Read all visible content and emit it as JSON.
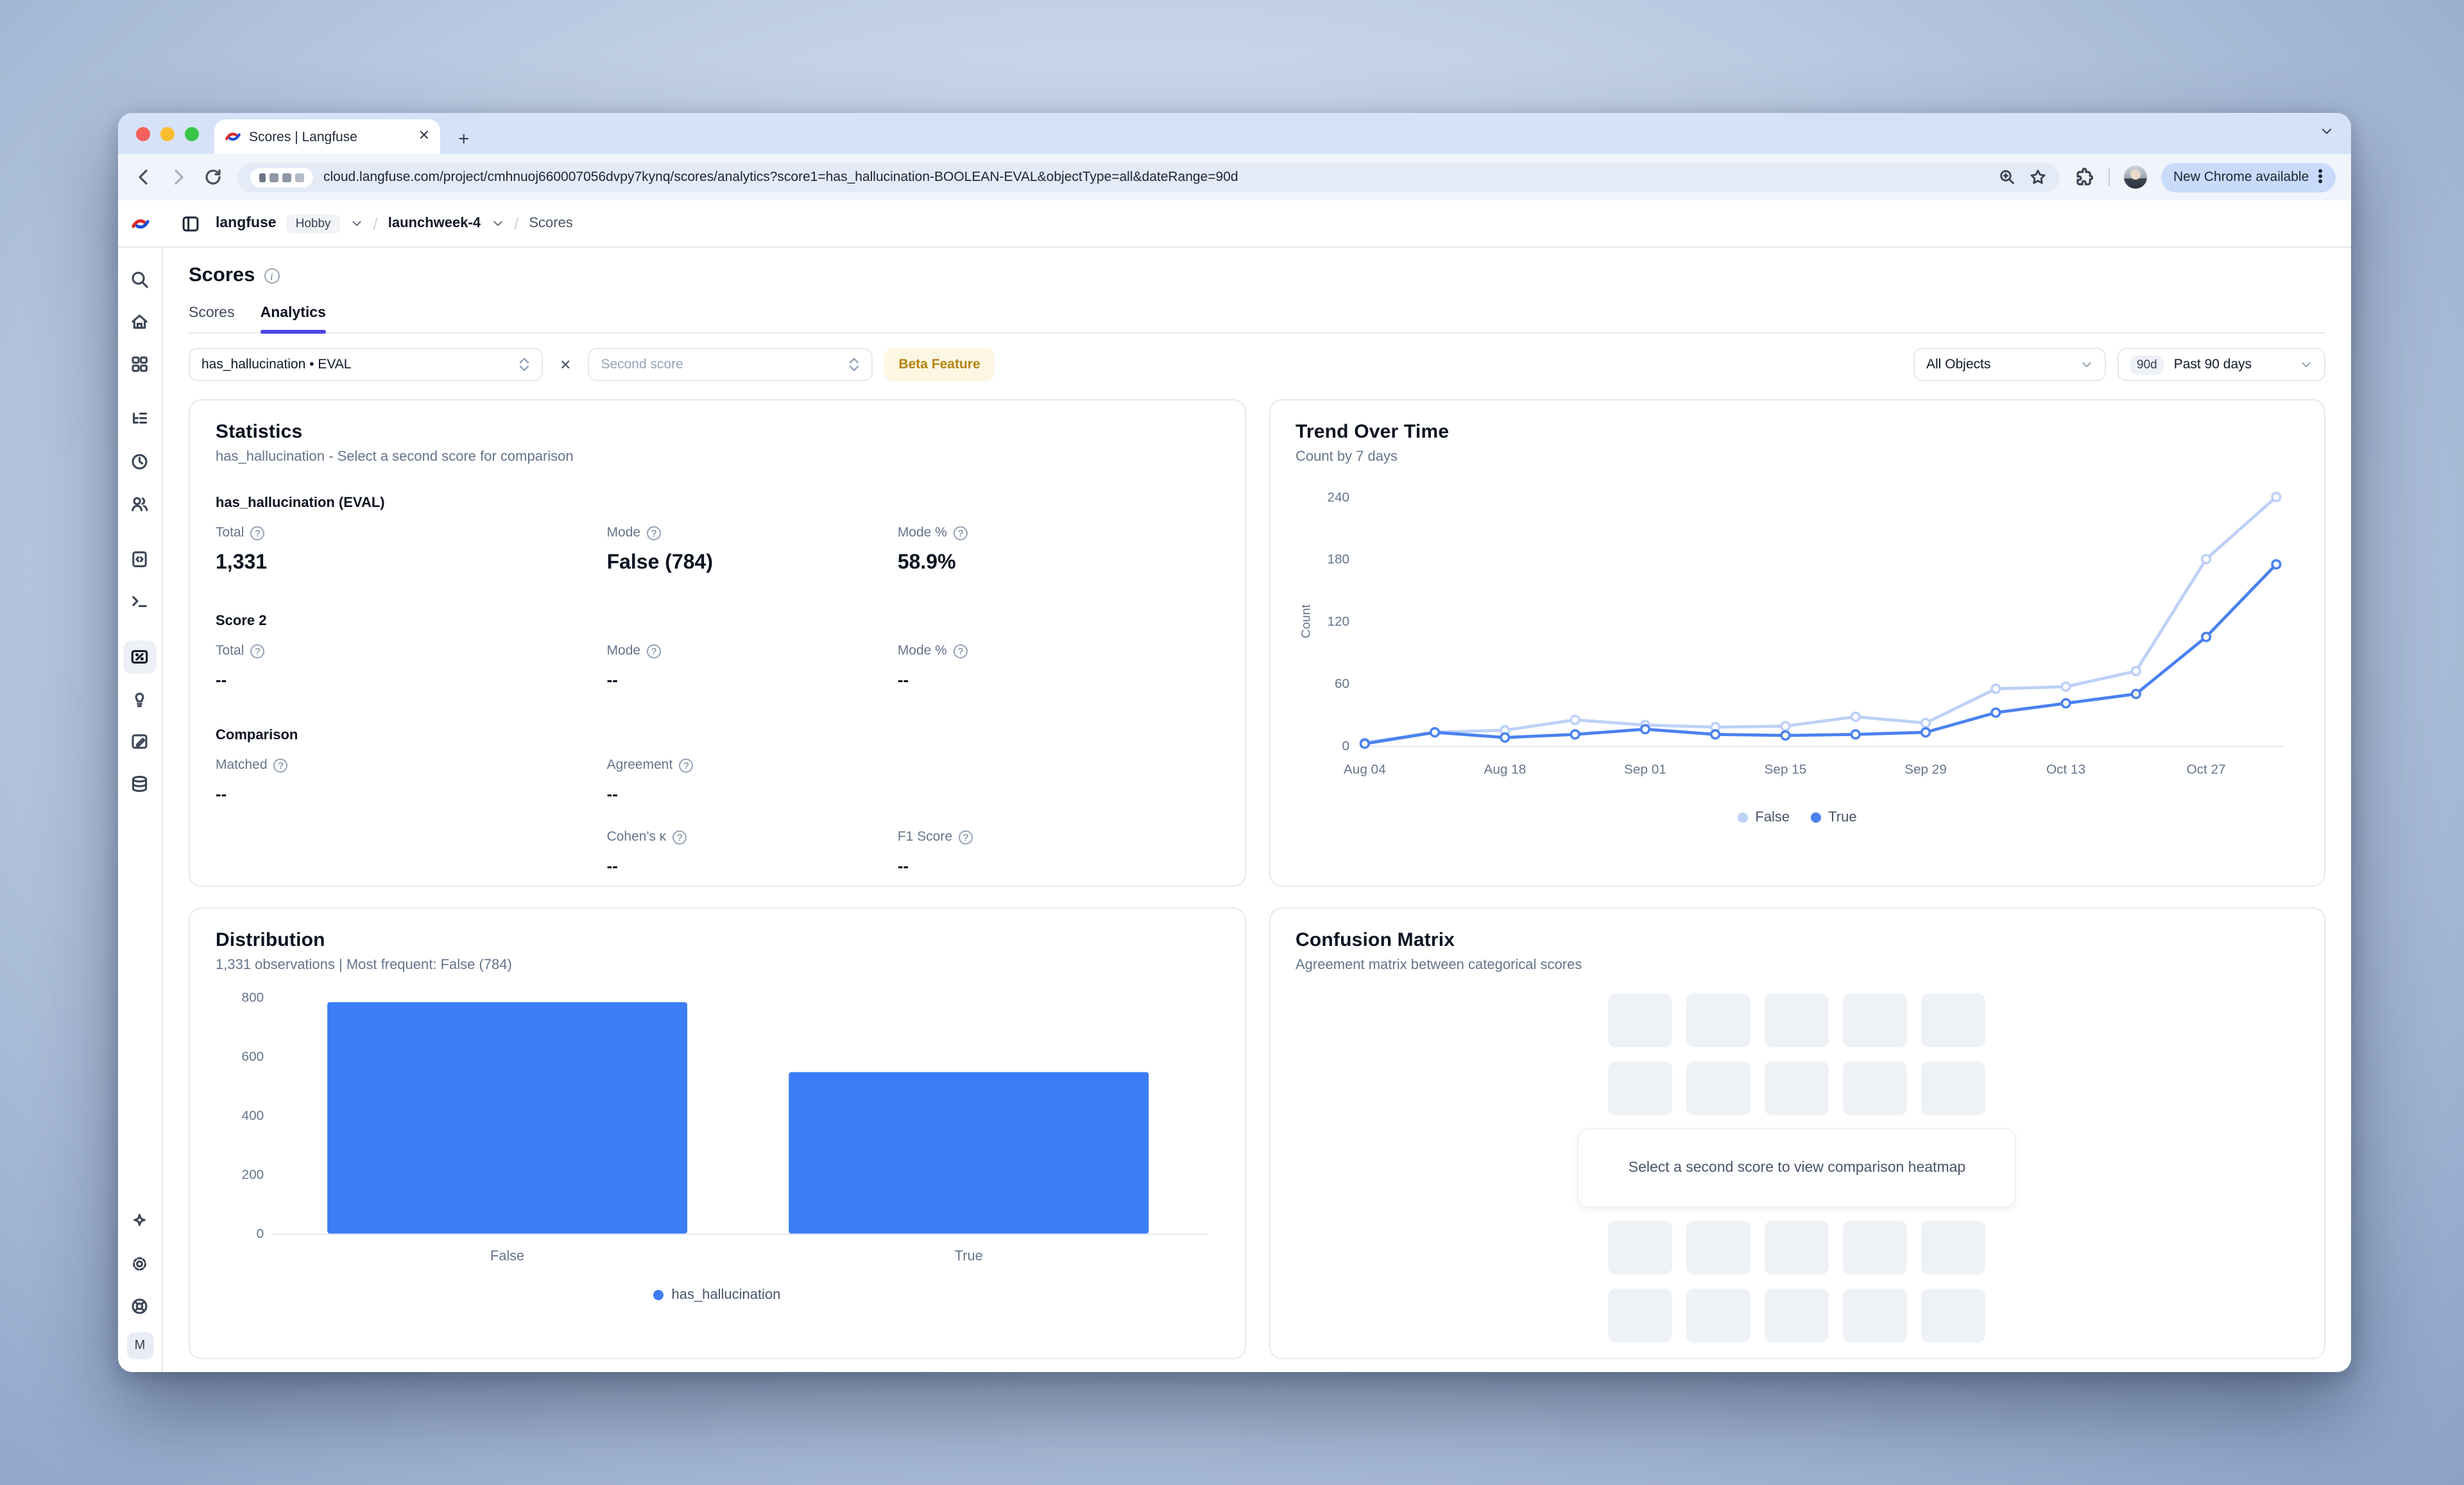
{
  "browser": {
    "tab_title": "Scores | Langfuse",
    "url": "cloud.langfuse.com/project/cmhnuoj660007056dvpy7kynq/scores/analytics?score1=has_hallucination-BOOLEAN-EVAL&objectType=all&dateRange=90d",
    "update_pill": "New Chrome available"
  },
  "header": {
    "org": "langfuse",
    "plan_badge": "Hobby",
    "project": "launchweek-4",
    "section": "Scores"
  },
  "page": {
    "title": "Scores",
    "tabs": [
      {
        "label": "Scores"
      },
      {
        "label": "Analytics"
      }
    ]
  },
  "filters": {
    "score1_value": "has_hallucination • EVAL",
    "score2_placeholder": "Second score",
    "beta_badge": "Beta Feature",
    "object_filter": "All Objects",
    "date_badge": "90d",
    "date_label": "Past 90 days"
  },
  "sidebar": {
    "avatar_letter": "M",
    "items": [
      "search",
      "home",
      "dashboards",
      "tracing",
      "sessions",
      "users",
      "prompts",
      "playground",
      "scores",
      "evaluators",
      "annotation",
      "datasets"
    ],
    "bottom_items": [
      "whats-new",
      "settings",
      "support"
    ]
  },
  "statistics": {
    "title": "Statistics",
    "subtitle": "has_hallucination - Select a second score for comparison",
    "score1": {
      "heading": "has_hallucination (EVAL)",
      "metrics": [
        {
          "label": "Total",
          "value": "1,331"
        },
        {
          "label": "Mode",
          "value": "False (784)"
        },
        {
          "label": "Mode %",
          "value": "58.9%"
        }
      ]
    },
    "score2": {
      "heading": "Score 2",
      "metrics": [
        {
          "label": "Total",
          "value": "--"
        },
        {
          "label": "Mode",
          "value": "--"
        },
        {
          "label": "Mode %",
          "value": "--"
        }
      ]
    },
    "comparison": {
      "heading": "Comparison",
      "row1": [
        {
          "label": "Matched",
          "value": "--"
        },
        {
          "label": "Agreement",
          "value": "--"
        }
      ],
      "row2": [
        {
          "label": "Cohen's κ",
          "value": "--"
        },
        {
          "label": "F1 Score",
          "value": "--"
        }
      ]
    }
  },
  "trend": {
    "title": "Trend Over Time",
    "subtitle": "Count by 7 days"
  },
  "distribution": {
    "title": "Distribution",
    "subtitle": "1,331 observations | Most frequent: False (784)",
    "legend": "has_hallucination"
  },
  "confusion": {
    "title": "Confusion Matrix",
    "subtitle": "Agreement matrix between categorical scores",
    "placeholder": "Select a second score to view comparison heatmap"
  },
  "colors": {
    "accent_indigo": "#4f46e5",
    "series_false": "#bdd0f8",
    "series_true": "#4a81f0",
    "bar_blue": "#3c7df6",
    "beta_amber": "#b5830f"
  },
  "chart_data": [
    {
      "type": "line",
      "title": "Trend Over Time",
      "ylabel": "Count",
      "ylim": [
        0,
        240
      ],
      "yticks": [
        0,
        60,
        120,
        180,
        240
      ],
      "grid": false,
      "legend_position": "bottom",
      "x": [
        "Aug 04",
        "Aug 11",
        "Aug 18",
        "Aug 25",
        "Sep 01",
        "Sep 08",
        "Sep 15",
        "Sep 22",
        "Sep 29",
        "Oct 06",
        "Oct 13",
        "Oct 20",
        "Oct 27",
        "Nov 03"
      ],
      "xtick_indices": [
        0,
        2,
        4,
        6,
        8,
        10,
        12
      ],
      "series": [
        {
          "name": "False",
          "color": "#bdd0f8",
          "values": [
            3,
            13,
            15,
            25,
            20,
            18,
            19,
            28,
            22,
            55,
            57,
            72,
            180,
            240
          ]
        },
        {
          "name": "True",
          "color": "#4a81f0",
          "values": [
            2,
            13,
            8,
            11,
            16,
            11,
            10,
            11,
            13,
            32,
            41,
            50,
            105,
            175
          ]
        }
      ]
    },
    {
      "type": "bar",
      "title": "Distribution",
      "series_name": "has_hallucination",
      "categories": [
        "False",
        "True"
      ],
      "values": [
        784,
        547
      ],
      "color": "#3c7df6",
      "ylim": [
        0,
        800
      ],
      "yticks": [
        0,
        200,
        400,
        600,
        800
      ],
      "grid": false,
      "legend_position": "bottom"
    }
  ]
}
